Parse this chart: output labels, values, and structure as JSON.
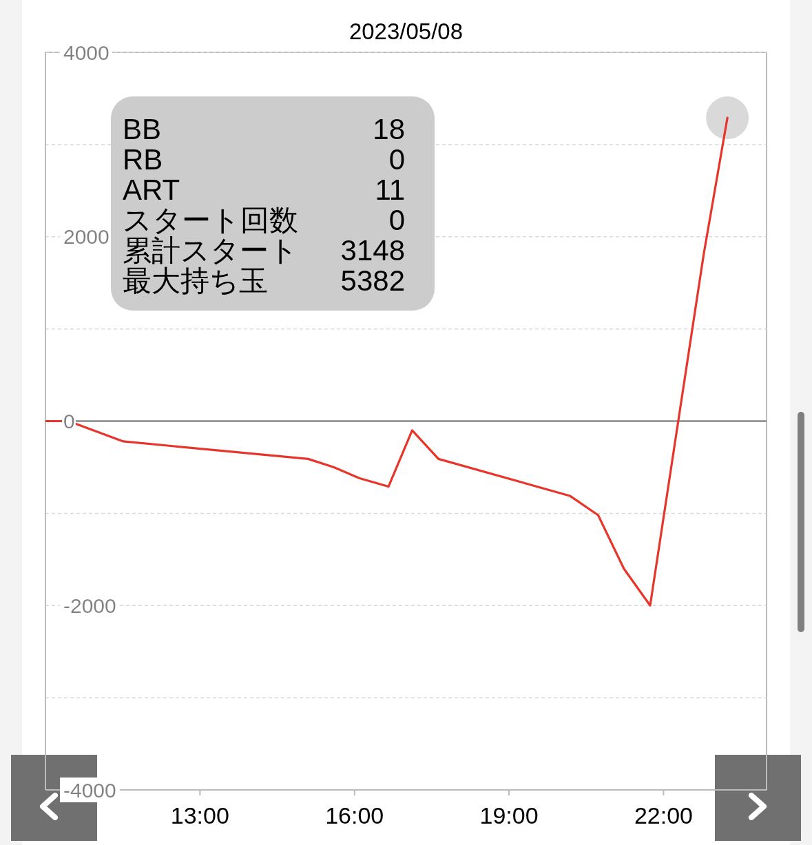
{
  "chart_data": {
    "type": "line",
    "title": "2023/05/08",
    "annotations": [
      "BB",
      "18",
      "RB",
      "0",
      "ART",
      "11",
      "スタート回数",
      "0",
      "累計スタート",
      "3148",
      "最大持ち玉",
      "5382"
    ],
    "xlim": [
      10,
      24
    ],
    "xticks": [
      {
        "value": 13,
        "label": "13:00"
      },
      {
        "value": 16,
        "label": "16:00"
      },
      {
        "value": 19,
        "label": "19:00"
      },
      {
        "value": 22,
        "label": "22:00"
      }
    ],
    "ylim": [
      -4000,
      4000
    ],
    "yticks": [
      -4000,
      {
        "value": -3000,
        "label": null
      },
      -2000,
      {
        "value": -1000,
        "label": null
      },
      0,
      {
        "value": 1000,
        "label": null
      },
      2000,
      {
        "value": 3000,
        "label": null
      },
      4000
    ],
    "grid": "y",
    "ref_lines": [
      {
        "axis": "y",
        "value": 0,
        "color": "#888888"
      }
    ],
    "series": [
      {
        "type": "scatter",
        "color": "#d9d9d9",
        "marker": "circle",
        "x": [
          23.24
        ],
        "values": [
          3290
        ]
      },
      {
        "type": "line",
        "color": "#e8352b",
        "x": [
          10,
          10.45,
          11.51,
          15.1,
          15.6,
          16.1,
          16.66,
          17.12,
          17.63,
          20.18,
          20.73,
          21.23,
          21.74,
          22.78,
          23.24
        ],
        "values": [
          0,
          0,
          -220,
          -410,
          -500,
          -620,
          -710,
          -100,
          -410,
          -810,
          -1020,
          -1600,
          -2000,
          1810,
          3290
        ]
      }
    ]
  }
}
